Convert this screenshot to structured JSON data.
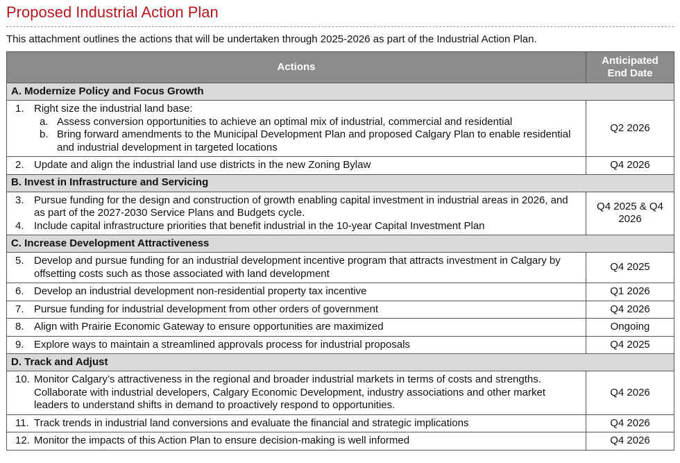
{
  "title": "Proposed Industrial Action Plan",
  "intro": "This attachment outlines the actions that will be undertaken through 2025-2026 as part of the Industrial Action Plan.",
  "table": {
    "headers": [
      "Actions",
      "Anticipated End Date"
    ],
    "sections": [
      {
        "title": "A. Modernize Policy and Focus Growth",
        "rows": [
          {
            "items": [
              {
                "num": "1.",
                "text": "Right size the industrial land base:",
                "subitems": [
                  {
                    "letter": "a.",
                    "text": "Assess conversion opportunities to achieve an optimal mix of industrial, commercial and residential"
                  },
                  {
                    "letter": "b.",
                    "text": "Bring forward amendments to the Municipal Development Plan and proposed Calgary Plan to enable residential and industrial development in targeted locations"
                  }
                ]
              }
            ],
            "date": "Q2 2026"
          },
          {
            "items": [
              {
                "num": "2.",
                "text": "Update and align the industrial land use districts in the new Zoning Bylaw"
              }
            ],
            "date": "Q4 2026"
          }
        ]
      },
      {
        "title": "B. Invest in Infrastructure and Servicing",
        "rows": [
          {
            "items": [
              {
                "num": "3.",
                "text": "Pursue funding for the design and construction of growth enabling capital investment in industrial areas in 2026, and as part of the 2027-2030 Service Plans and Budgets cycle."
              },
              {
                "num": "4.",
                "text": "Include capital infrastructure priorities that benefit industrial in the 10-year Capital Investment Plan"
              }
            ],
            "date": "Q4 2025 & Q4 2026"
          }
        ]
      },
      {
        "title": "C. Increase Development Attractiveness",
        "rows": [
          {
            "items": [
              {
                "num": "5.",
                "text": "Develop and pursue funding for an industrial development incentive program that attracts investment in Calgary by offsetting costs such as those associated with land development"
              }
            ],
            "date": "Q4 2025"
          },
          {
            "items": [
              {
                "num": "6.",
                "text": "Develop an industrial development non-residential property tax incentive"
              }
            ],
            "date": "Q1 2026"
          },
          {
            "items": [
              {
                "num": "7.",
                "text": "Pursue funding for industrial development from other orders of government"
              }
            ],
            "date": "Q4 2026"
          },
          {
            "items": [
              {
                "num": "8.",
                "text": "Align with Prairie Economic Gateway to ensure opportunities are maximized"
              }
            ],
            "date": "Ongoing"
          },
          {
            "items": [
              {
                "num": "9.",
                "text": "Explore ways to maintain a streamlined approvals process for industrial proposals"
              }
            ],
            "date": "Q4 2025"
          }
        ]
      },
      {
        "title": "D. Track and Adjust",
        "rows": [
          {
            "items": [
              {
                "num": "10.",
                "text": "Monitor Calgary’s attractiveness in the regional and broader industrial markets in terms of costs and strengths. Collaborate with industrial developers, Calgary Economic Development, industry associations and other market leaders to understand shifts in demand to proactively respond to opportunities."
              }
            ],
            "date": "Q4 2026"
          },
          {
            "items": [
              {
                "num": "11.",
                "text": "Track trends in industrial land conversions and evaluate the financial and strategic implications"
              }
            ],
            "date": "Q4 2026"
          },
          {
            "items": [
              {
                "num": "12.",
                "text": "Monitor the impacts of this Action Plan to ensure decision-making is well informed"
              }
            ],
            "date": "Q4 2026"
          }
        ]
      }
    ]
  }
}
